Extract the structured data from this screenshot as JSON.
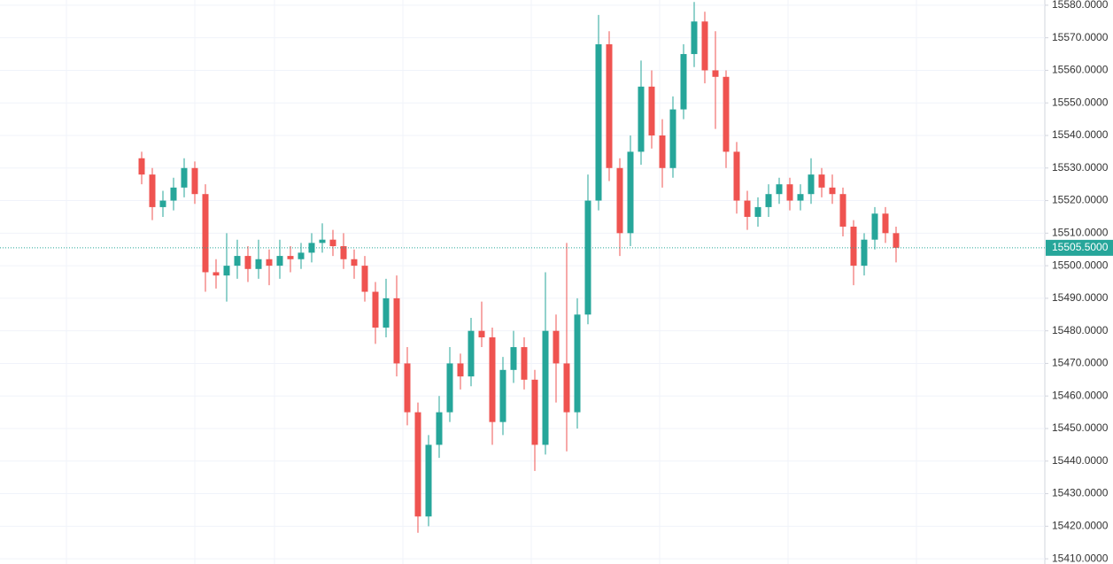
{
  "chart_data": {
    "type": "candlestick",
    "open": [
      15533,
      15528,
      15518,
      15520,
      15524,
      15530,
      15522,
      15498,
      15497,
      15500,
      15503,
      15499,
      15502,
      15500,
      15503,
      15502,
      15504,
      15507,
      15508,
      15506,
      15502,
      15500,
      15492,
      15481,
      15490,
      15470,
      15455,
      15423,
      15445,
      15455,
      15470,
      15466,
      15480,
      15478,
      15452,
      15468,
      15475,
      15465,
      15445,
      15480,
      15470,
      15455,
      15485,
      15520,
      15568,
      15530,
      15510,
      15535,
      15555,
      15540,
      15530,
      15548,
      15565,
      15575,
      15560,
      15558,
      15535,
      15520,
      15515,
      15518,
      15522,
      15525,
      15520,
      15522,
      15528,
      15524,
      15522,
      15512,
      15500,
      15508,
      15516,
      15510
    ],
    "high": [
      15535,
      15530,
      15523,
      15527,
      15533,
      15532,
      15525,
      15502,
      15510,
      15508,
      15506,
      15508,
      15505,
      15508,
      15506,
      15507,
      15510,
      15513,
      15511,
      15510,
      15505,
      15503,
      15495,
      15496,
      15497,
      15475,
      15458,
      15448,
      15460,
      15475,
      15473,
      15484,
      15489,
      15481,
      15472,
      15480,
      15478,
      15468,
      15498,
      15485,
      15507,
      15490,
      15528,
      15577,
      15572,
      15533,
      15540,
      15563,
      15560,
      15545,
      15552,
      15568,
      15581,
      15578,
      15572,
      15560,
      15538,
      15523,
      15521,
      15525,
      15527,
      15527,
      15525,
      15533,
      15530,
      15528,
      15524,
      15514,
      15510,
      15518,
      15518,
      15512
    ],
    "low": [
      15525,
      15514,
      15515,
      15517,
      15521,
      15519,
      15492,
      15493,
      15489,
      15496,
      15495,
      15496,
      15494,
      15496,
      15498,
      15499,
      15501,
      15504,
      15503,
      15499,
      15496,
      15489,
      15476,
      15478,
      15466,
      15451,
      15418,
      15420,
      15441,
      15452,
      15462,
      15463,
      15475,
      15445,
      15448,
      15464,
      15462,
      15437,
      15442,
      15458,
      15443,
      15450,
      15482,
      15517,
      15526,
      15503,
      15506,
      15531,
      15536,
      15524,
      15527,
      15545,
      15561,
      15556,
      15542,
      15530,
      15516,
      15511,
      15512,
      15515,
      15519,
      15517,
      15517,
      15519,
      15521,
      15519,
      15509,
      15494,
      15497,
      15505,
      15507,
      15501
    ],
    "close": [
      15528,
      15518,
      15520,
      15524,
      15530,
      15522,
      15498,
      15497,
      15500,
      15503,
      15499,
      15502,
      15500,
      15503,
      15502,
      15504,
      15507,
      15508,
      15506,
      15502,
      15500,
      15492,
      15481,
      15490,
      15470,
      15455,
      15423,
      15445,
      15455,
      15470,
      15466,
      15480,
      15478,
      15452,
      15468,
      15475,
      15465,
      15445,
      15480,
      15470,
      15455,
      15485,
      15520,
      15568,
      15530,
      15510,
      15535,
      15555,
      15540,
      15530,
      15548,
      15565,
      15575,
      15560,
      15558,
      15535,
      15520,
      15515,
      15518,
      15522,
      15525,
      15520,
      15522,
      15528,
      15524,
      15522,
      15512,
      15500,
      15508,
      15516,
      15510,
      15505.5
    ],
    "up_color": "#26a69a",
    "down_color": "#ef5350",
    "last_price": {
      "value": 15505.5,
      "label": "15505.5000"
    },
    "ylim": [
      15408.4,
      15581.6
    ],
    "yticks": [
      {
        "value": 15410,
        "label": "15410.0000"
      },
      {
        "value": 15420,
        "label": "15420.0000"
      },
      {
        "value": 15430,
        "label": "15430.0000"
      },
      {
        "value": 15440,
        "label": "15440.0000"
      },
      {
        "value": 15450,
        "label": "15450.0000"
      },
      {
        "value": 15460,
        "label": "15460.0000"
      },
      {
        "value": 15470,
        "label": "15470.0000"
      },
      {
        "value": 15480,
        "label": "15480.0000"
      },
      {
        "value": 15490,
        "label": "15490.0000"
      },
      {
        "value": 15500,
        "label": "15500.0000"
      },
      {
        "value": 15510,
        "label": "15510.0000"
      },
      {
        "value": 15520,
        "label": "15520.0000"
      },
      {
        "value": 15530,
        "label": "15530.0000"
      },
      {
        "value": 15540,
        "label": "15540.0000"
      },
      {
        "value": 15550,
        "label": "15550.0000"
      },
      {
        "value": 15560,
        "label": "15560.0000"
      },
      {
        "value": 15570,
        "label": "15570.0000"
      },
      {
        "value": 15580,
        "label": "15580.0000"
      }
    ],
    "grid": true
  }
}
